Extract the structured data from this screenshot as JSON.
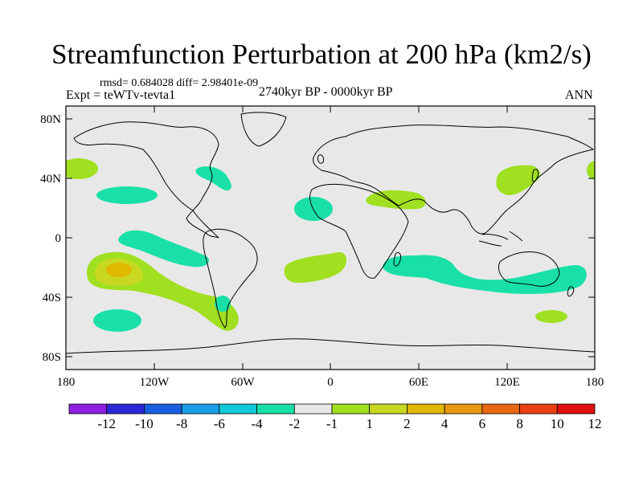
{
  "title": "Streamfunction Perturbation at 200 hPa (km2/s)",
  "stats": "rmsd= 0.684028 diff= 2.98401e-09",
  "experiment": "Expt = teWTv-tevta1",
  "period": "2740kyr BP - 0000kyr BP",
  "season": "ANN",
  "lat_ticks": [
    "80N",
    "40N",
    "0",
    "40S",
    "80S"
  ],
  "lon_ticks": [
    "180",
    "120W",
    "60W",
    "0",
    "60E",
    "120E",
    "180"
  ],
  "colorbar": {
    "colors": [
      "#8c1fe0",
      "#2a28d6",
      "#1a5ee0",
      "#1a9ee8",
      "#10c8d8",
      "#18e0a8",
      "#e8e8e8",
      "#a0e020",
      "#c8d820",
      "#e0b800",
      "#e89810",
      "#e86810",
      "#e84010",
      "#e01010"
    ],
    "labels": [
      "-12",
      "-10",
      "-8",
      "-6",
      "-4",
      "-2",
      "-1",
      "1",
      "2",
      "4",
      "6",
      "8",
      "10",
      "12"
    ]
  },
  "colors": {
    "ocean_background": "#e8e8e8",
    "negative_1_2": "#18e0a8",
    "positive_1_2": "#a0e020",
    "positive_2_4": "#c8d820",
    "positive_4_6": "#e0b800"
  }
}
